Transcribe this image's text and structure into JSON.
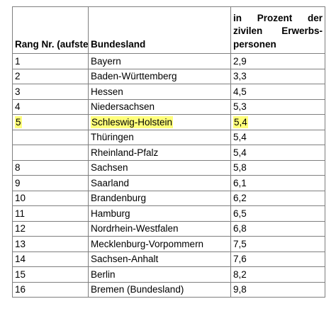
{
  "table": {
    "headers": {
      "rank": "Rang Nr. (aufsteigend)",
      "state": "Bundesland",
      "percent": "in Prozent der zivilen Erwerbs-personen"
    },
    "rows": [
      {
        "rank": "1",
        "state": "Bayern",
        "value": "2,9"
      },
      {
        "rank": "2",
        "state": "Baden-Württemberg",
        "value": "3,3"
      },
      {
        "rank": "3",
        "state": "Hessen",
        "value": "4,5"
      },
      {
        "rank": "4",
        "state": "Niedersachsen",
        "value": "5,3"
      },
      {
        "rank": "5",
        "state": "Schleswig-Holstein",
        "value": "5,4",
        "highlighted": true
      },
      {
        "rank": "",
        "state": "Thüringen",
        "value": "5,4"
      },
      {
        "rank": "",
        "state": "Rheinland-Pfalz",
        "value": "5,4"
      },
      {
        "rank": "8",
        "state": "Sachsen",
        "value": "5,8"
      },
      {
        "rank": "9",
        "state": "Saarland",
        "value": "6,1"
      },
      {
        "rank": "10",
        "state": "Brandenburg",
        "value": "6,2"
      },
      {
        "rank": "11",
        "state": "Hamburg",
        "value": "6,5"
      },
      {
        "rank": "12",
        "state": "Nordrhein-Westfalen",
        "value": "6,8"
      },
      {
        "rank": "13",
        "state": "Mecklenburg-Vorpommern",
        "value": "7,5"
      },
      {
        "rank": "14",
        "state": "Sachsen-Anhalt",
        "value": "7,6"
      },
      {
        "rank": "15",
        "state": "Berlin",
        "value": "8,2"
      },
      {
        "rank": "16",
        "state": "Bremen (Bundesland)",
        "value": "9,8"
      }
    ],
    "highlight_color": "#ffff7a"
  }
}
